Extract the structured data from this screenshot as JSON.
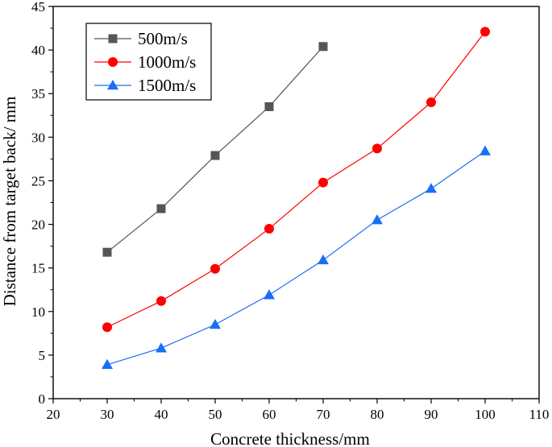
{
  "chart_data": {
    "type": "line",
    "title": "",
    "xlabel": "Concrete thickness/mm",
    "ylabel": "Distance from target back/ mm",
    "xlim": [
      20,
      110
    ],
    "ylim": [
      0,
      45
    ],
    "xticks": [
      20,
      30,
      40,
      50,
      60,
      70,
      80,
      90,
      100,
      110
    ],
    "yticks": [
      0,
      5,
      10,
      15,
      20,
      25,
      30,
      35,
      40,
      45
    ],
    "grid": false,
    "legend_position": "top-left",
    "series": [
      {
        "name": "500m/s",
        "marker": "square",
        "color": "#555555",
        "x": [
          30,
          40,
          50,
          60,
          70
        ],
        "y": [
          16.8,
          21.8,
          27.9,
          33.5,
          40.4
        ]
      },
      {
        "name": "1000m/s",
        "marker": "circle",
        "color": "#ff0000",
        "x": [
          30,
          40,
          50,
          60,
          70,
          80,
          90,
          100
        ],
        "y": [
          8.2,
          11.2,
          14.9,
          19.5,
          24.8,
          28.7,
          34.0,
          42.1
        ]
      },
      {
        "name": "1500m/s",
        "marker": "triangle",
        "color": "#1a6ef5",
        "x": [
          30,
          40,
          50,
          60,
          70,
          80,
          90,
          100
        ],
        "y": [
          3.9,
          5.8,
          8.5,
          11.9,
          15.9,
          20.5,
          24.1,
          28.4
        ]
      }
    ]
  }
}
